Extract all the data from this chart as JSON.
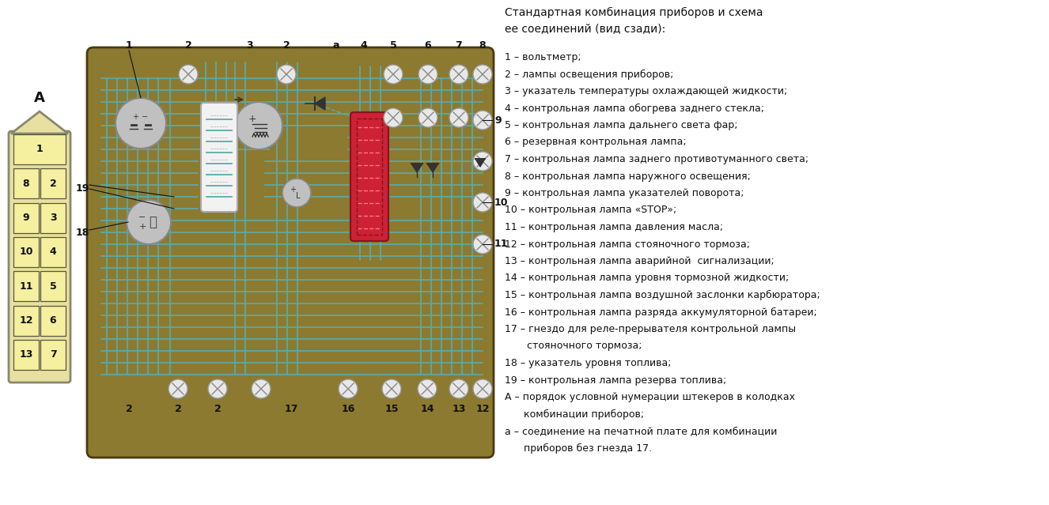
{
  "bg_color": "#ffffff",
  "board_color": "#8B7A30",
  "board_border_color": "#6B5A1A",
  "trace_color": "#5AACAC",
  "title_text": "Стандартная комбинация приборов и схема\nее соединений (вид сзади):",
  "legend_lines": [
    "1 – вольтметр;",
    "2 – лампы освещения приборов;",
    "3 – указатель температуры охлаждающей жидкости;",
    "4 – контрольная лампа обогрева заднего стекла;",
    "5 – контрольная лампа дальнего света фар;",
    "6 – резервная контрольная лампа;",
    "7 – контрольная лампа заднего противотуманного света;",
    "8 – контрольная лампа наружного освещения;",
    "9 – контрольная лампа указателей поворота;",
    "10 – контрольная лампа «STOP»;",
    "11 – контрольная лампа давления масла;",
    "12 – контрольная лампа стояночного тормоза;",
    "13 – контрольная лампа аварийной  сигнализации;",
    "14 – контрольная лампа уровня тормозной жидкости;",
    "15 – контрольная лампа воздушной заслонки карбюратора;",
    "16 – контрольная лампа разряда аккумуляторной батареи;",
    "17 – гнездо для реле-прерывателя контрольной лампы",
    "       стояночного тормоза;",
    "18 – указатель уровня топлива;",
    "19 – контрольная лампа резерва топлива;",
    "А – порядок условной нумерации штекеров в колодках",
    "      комбинации приборов;",
    "а – соединение на печатной плате для комбинации",
    "      приборов без гнезда 17."
  ],
  "font_size_legend": 9,
  "font_size_title": 10
}
